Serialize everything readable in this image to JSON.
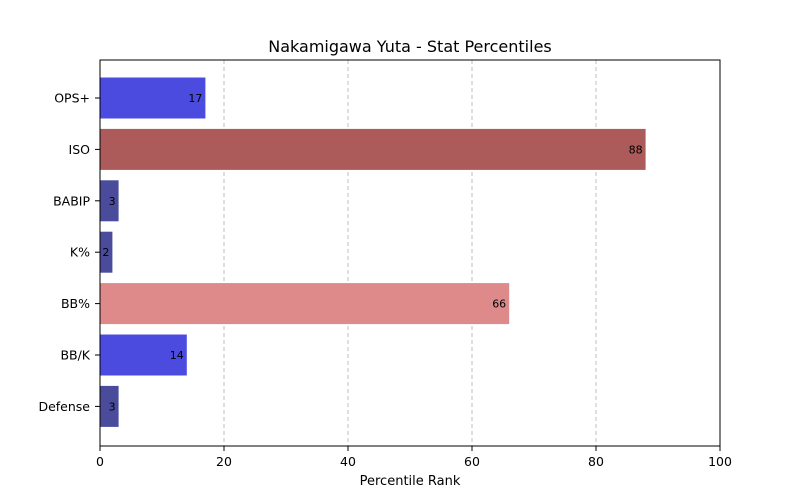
{
  "chart_data": {
    "type": "bar",
    "orientation": "horizontal",
    "title": "Nakamigawa Yuta - Stat Percentiles",
    "xlabel": "Percentile Rank",
    "ylabel": "",
    "xlim": [
      0,
      100
    ],
    "xticks": [
      0,
      20,
      40,
      60,
      80,
      100
    ],
    "grid": "x-dashed",
    "categories": [
      "OPS+",
      "ISO",
      "BABIP",
      "K%",
      "BB%",
      "BB/K",
      "Defense"
    ],
    "values": [
      17,
      88,
      3,
      2,
      66,
      14,
      3
    ],
    "colors": [
      "#4b4be0",
      "#ad5a5a",
      "#4b4b9c",
      "#4b4b9c",
      "#de8a8a",
      "#4b4be0",
      "#4b4b9c"
    ]
  }
}
